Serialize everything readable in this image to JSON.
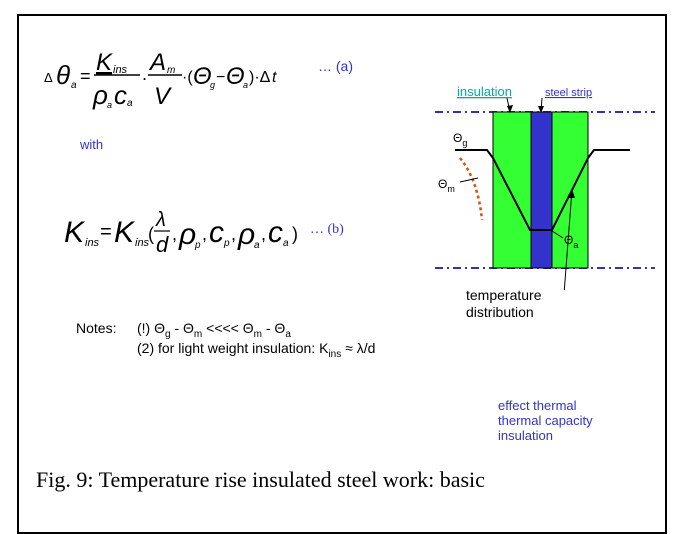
{
  "equations": {
    "a_label": "… (a)",
    "b_label": "… (b)",
    "with": "with"
  },
  "diagram": {
    "insulation_label": "insulation",
    "steel_label": "steel strip",
    "theta_g": "Θ",
    "theta_g_sub": "g",
    "theta_m": "Θ",
    "theta_m_sub": "m",
    "theta_a": "Θ",
    "theta_a_sub": "a",
    "temperature": "temperature",
    "distribution": "distribution",
    "effect_line1": "effect thermal",
    "effect_line2": "thermal capacity",
    "effect_line3": "insulation",
    "colors": {
      "insulation": "#33ff33",
      "steel": "#3333cc",
      "dash_line": "#3333aa",
      "curve": "#cc5511",
      "insulation_text": "#00aaaa",
      "steel_text": "#3333cc"
    }
  },
  "notes": {
    "label": "Notes:",
    "line1_prefix": "(!) ",
    "line2_prefix": "(2) for light weight insulation: K",
    "line2_sub": "ins",
    "line2_suffix": " ≈ λ/d"
  },
  "caption": "Fig. 9:   Temperature rise insulated steel work: basic"
}
